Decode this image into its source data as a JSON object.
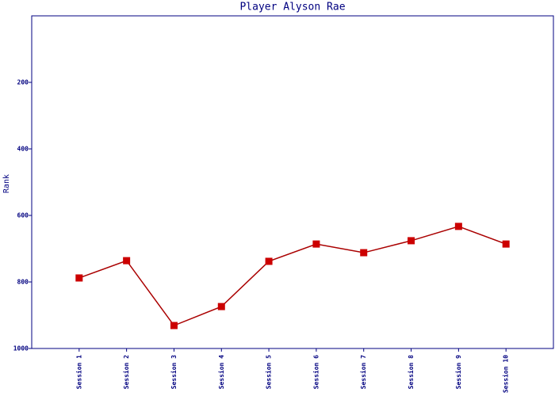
{
  "chart_data": {
    "type": "line",
    "title": "Player Alyson Rae",
    "y_label": "Rank",
    "categories": [
      "Session 1",
      "Session 2",
      "Session 3",
      "Session 4",
      "Session 5",
      "Session 6",
      "Session 7",
      "Session 8",
      "Session 9",
      "Session 10"
    ],
    "values": [
      788,
      736,
      931,
      874,
      738,
      686,
      712,
      676,
      633,
      686
    ],
    "color": "#aa0000",
    "marker_color": "#cc0000",
    "ylim": [
      0,
      1000
    ],
    "yticks": [
      200,
      400,
      600,
      800,
      1000
    ],
    "y_inverted": true,
    "grid": false
  }
}
